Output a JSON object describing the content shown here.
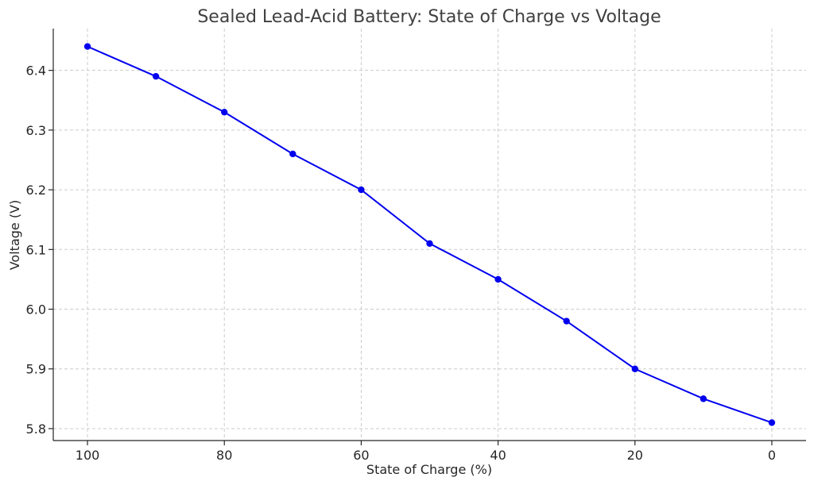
{
  "chart_data": {
    "type": "line",
    "title": "Sealed Lead-Acid Battery: State of Charge vs Voltage",
    "xlabel": "State of Charge (%)",
    "ylabel": "Voltage (V)",
    "x_inverted": true,
    "xlim": [
      105,
      -5
    ],
    "ylim": [
      5.78,
      6.47
    ],
    "xticks": [
      100,
      80,
      60,
      40,
      20,
      0
    ],
    "yticks": [
      5.8,
      5.9,
      6.0,
      6.1,
      6.2,
      6.3,
      6.4
    ],
    "ytick_labels": [
      "5.8",
      "5.9",
      "6.0",
      "6.1",
      "6.2",
      "6.3",
      "6.4"
    ],
    "grid": true,
    "series": [
      {
        "color": "#0000ee",
        "marker": "circle",
        "x": [
          100,
          90,
          80,
          70,
          60,
          50,
          40,
          30,
          20,
          10,
          0
        ],
        "y": [
          6.44,
          6.39,
          6.33,
          6.26,
          6.2,
          6.11,
          6.05,
          5.98,
          5.9,
          5.85,
          5.81
        ]
      }
    ]
  }
}
